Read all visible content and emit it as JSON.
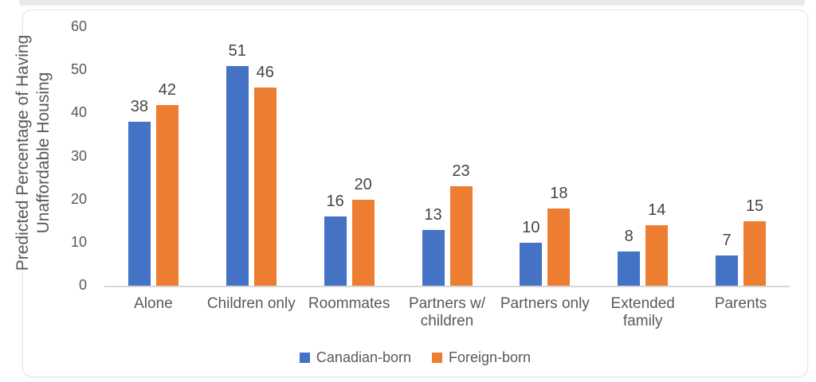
{
  "chart_data": {
    "type": "bar",
    "title": "",
    "categories": [
      "Alone",
      "Children only",
      "Roommates",
      "Partners w/ children",
      "Partners only",
      "Extended family",
      "Parents"
    ],
    "series": [
      {
        "name": "Canadian-born",
        "color": "#4472C4",
        "values": [
          38,
          51,
          16,
          13,
          10,
          8,
          7
        ]
      },
      {
        "name": "Foreign-born",
        "color": "#ED7D31",
        "values": [
          42,
          46,
          20,
          23,
          18,
          14,
          15
        ]
      }
    ],
    "xlabel": "",
    "ylabel": "Predicted Percentage of Having Unaffordable Housing",
    "ylim": [
      0,
      60
    ],
    "yticks": [
      0,
      10,
      20,
      30,
      40,
      50,
      60
    ],
    "grid": false,
    "legend_position": "bottom",
    "value_labels": true
  }
}
